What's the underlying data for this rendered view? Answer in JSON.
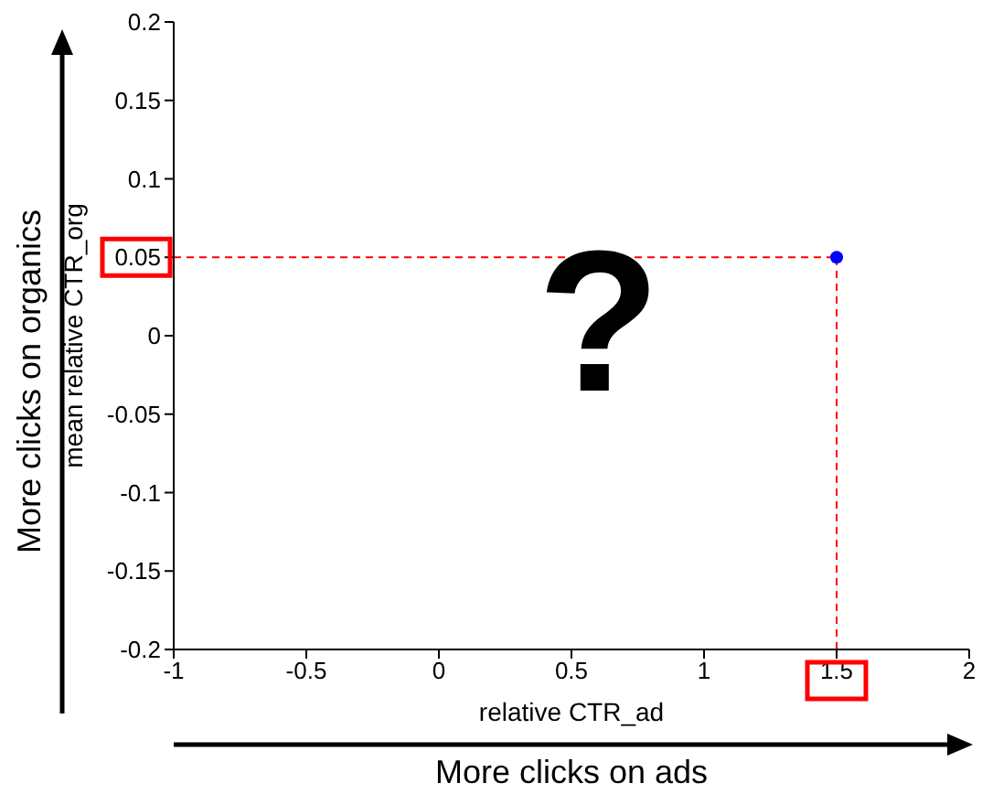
{
  "chart_data": {
    "type": "scatter",
    "xlabel": "relative CTR_ad",
    "ylabel": "mean relative CTR_org",
    "x": [
      1.5
    ],
    "series": [
      {
        "color": "#0000ff",
        "values": [
          0.05
        ]
      }
    ],
    "xlim": [
      -1,
      2
    ],
    "xticks": [
      -1,
      -0.5,
      0,
      0.5,
      1,
      1.5,
      2
    ],
    "ylim": [
      -0.2,
      0.2
    ],
    "yticks": [
      -0.2,
      -0.15,
      -0.1,
      -0.05,
      0,
      0.05,
      0.1,
      0.15,
      0.2
    ],
    "ref_lines": [
      {
        "axis": "y",
        "value": 0.05,
        "color": "#ff0000",
        "line_style": "dashed"
      },
      {
        "axis": "x",
        "value": 1.5,
        "color": "#ff0000",
        "line_style": "dashed"
      }
    ],
    "annotations": [
      "?",
      "More clicks on organics",
      "More clicks on ads"
    ],
    "marker": "circle",
    "grid": false,
    "legend": false
  }
}
